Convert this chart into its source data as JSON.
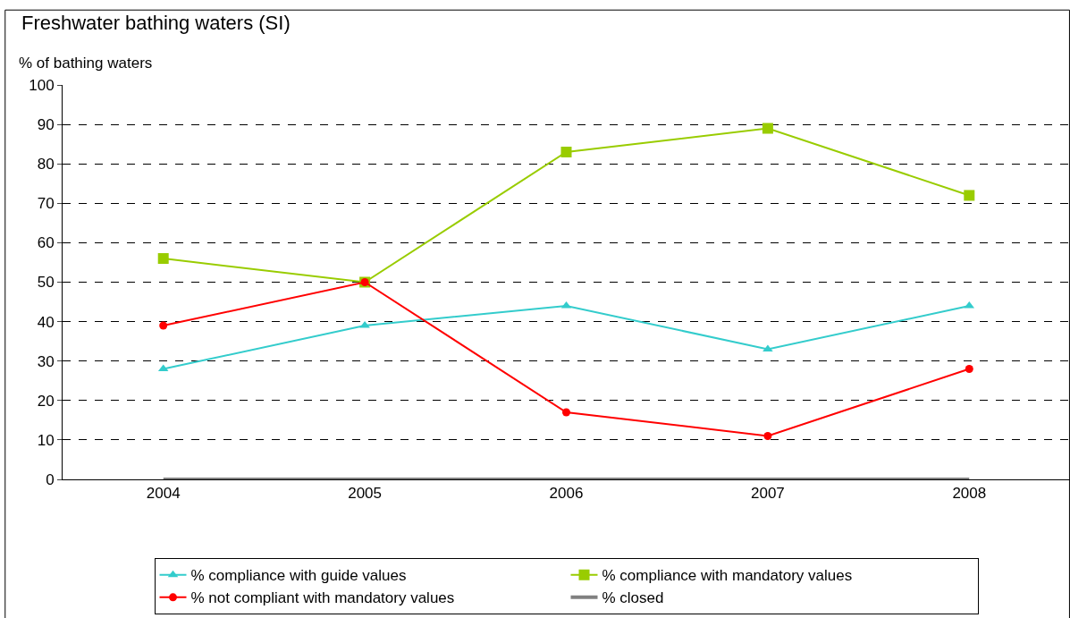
{
  "chart_data": {
    "type": "line",
    "title": "Freshwater bathing waters (SI)",
    "ylabel": "% of bathing waters",
    "categories": [
      "2004",
      "2005",
      "2006",
      "2007",
      "2008"
    ],
    "series": [
      {
        "name": "% compliance with guide values",
        "color": "#33cccc",
        "marker": "triangle",
        "values": [
          28,
          39,
          44,
          33,
          44
        ]
      },
      {
        "name": "% compliance with mandatory values",
        "color": "#99cc00",
        "marker": "square",
        "values": [
          56,
          50,
          83,
          89,
          72
        ]
      },
      {
        "name": "% not compliant with mandatory values",
        "color": "#ff0000",
        "marker": "circle",
        "values": [
          39,
          50,
          17,
          11,
          28
        ]
      },
      {
        "name": "% closed",
        "color": "#808080",
        "marker": "none",
        "values": [
          0,
          0,
          0,
          0,
          0
        ]
      }
    ],
    "ylim": [
      0,
      100
    ],
    "yticks": [
      0,
      10,
      20,
      30,
      40,
      50,
      60,
      70,
      80,
      90,
      100
    ],
    "grid": "y",
    "legend": "bottom",
    "line_style": "solid"
  }
}
